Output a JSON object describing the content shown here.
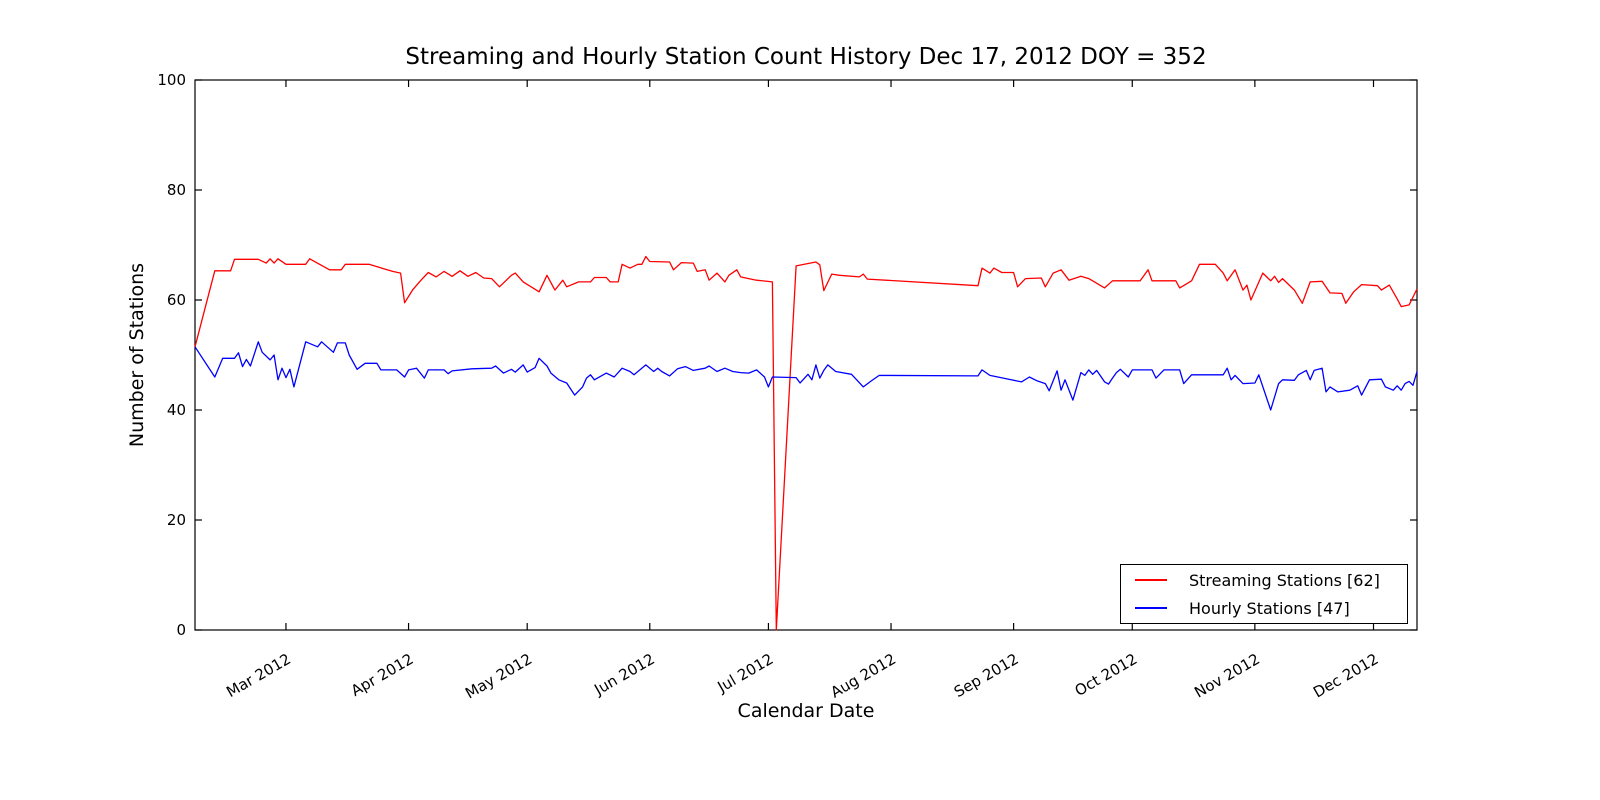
{
  "chart_data": {
    "type": "line",
    "title": "Streaming and Hourly Station Count History Dec 17, 2012 DOY = 352",
    "xlabel": "Calendar Date",
    "ylabel": "Number of Stations",
    "ylim": [
      0,
      100
    ],
    "yticks": [
      0,
      20,
      40,
      60,
      80,
      100
    ],
    "grid": false,
    "legend_position": "lower right",
    "x_axis": {
      "description": "days since start of plotted range (early Feb 2012)",
      "range": [
        0,
        309
      ],
      "month_ticks": [
        {
          "label": "Mar 2012",
          "day": 23
        },
        {
          "label": "Apr 2012",
          "day": 54
        },
        {
          "label": "May 2012",
          "day": 84
        },
        {
          "label": "Jun 2012",
          "day": 115
        },
        {
          "label": "Jul 2012",
          "day": 145
        },
        {
          "label": "Aug 2012",
          "day": 176
        },
        {
          "label": "Sep 2012",
          "day": 207
        },
        {
          "label": "Oct 2012",
          "day": 237
        },
        {
          "label": "Nov 2012",
          "day": 268
        },
        {
          "label": "Dec 2012",
          "day": 298
        }
      ]
    },
    "series": [
      {
        "name": "Streaming Stations [62]",
        "color": "#ff0000",
        "current_value": 62,
        "points": [
          [
            0,
            51.5
          ],
          [
            5,
            65.3
          ],
          [
            9,
            65.3
          ],
          [
            10,
            67.4
          ],
          [
            16,
            67.4
          ],
          [
            18,
            66.7
          ],
          [
            19,
            67.5
          ],
          [
            20,
            66.7
          ],
          [
            21,
            67.5
          ],
          [
            23,
            66.5
          ],
          [
            28,
            66.5
          ],
          [
            29,
            67.5
          ],
          [
            34,
            65.5
          ],
          [
            37,
            65.5
          ],
          [
            38,
            66.5
          ],
          [
            44,
            66.5
          ],
          [
            50,
            65.2
          ],
          [
            52,
            64.9
          ],
          [
            53,
            59.5
          ],
          [
            55,
            61.8
          ],
          [
            57,
            63.5
          ],
          [
            59,
            65.0
          ],
          [
            61,
            64.2
          ],
          [
            63,
            65.2
          ],
          [
            65,
            64.3
          ],
          [
            67,
            65.3
          ],
          [
            69,
            64.3
          ],
          [
            71,
            65.0
          ],
          [
            73,
            64.0
          ],
          [
            75,
            63.9
          ],
          [
            77,
            62.4
          ],
          [
            80,
            64.5
          ],
          [
            81,
            64.9
          ],
          [
            83,
            63.3
          ],
          [
            85,
            62.4
          ],
          [
            87,
            61.5
          ],
          [
            89,
            64.5
          ],
          [
            91,
            61.8
          ],
          [
            93,
            63.6
          ],
          [
            94,
            62.4
          ],
          [
            97,
            63.3
          ],
          [
            100,
            63.3
          ],
          [
            101,
            64.1
          ],
          [
            104,
            64.1
          ],
          [
            105,
            63.3
          ],
          [
            107,
            63.3
          ],
          [
            108,
            66.5
          ],
          [
            110,
            65.8
          ],
          [
            112,
            66.5
          ],
          [
            113,
            66.5
          ],
          [
            114,
            67.9
          ],
          [
            115,
            67.0
          ],
          [
            120,
            66.9
          ],
          [
            121,
            65.5
          ],
          [
            123,
            66.8
          ],
          [
            126,
            66.7
          ],
          [
            127,
            65.2
          ],
          [
            129,
            65.5
          ],
          [
            130,
            63.6
          ],
          [
            132,
            64.9
          ],
          [
            134,
            63.3
          ],
          [
            135,
            64.5
          ],
          [
            137,
            65.5
          ],
          [
            138,
            64.2
          ],
          [
            140,
            63.9
          ],
          [
            142,
            63.6
          ],
          [
            146,
            63.3
          ],
          [
            147,
            0
          ],
          [
            152,
            66.2
          ],
          [
            157,
            66.9
          ],
          [
            158,
            66.4
          ],
          [
            159,
            61.7
          ],
          [
            161,
            64.7
          ],
          [
            163,
            64.5
          ],
          [
            168,
            64.2
          ],
          [
            169,
            64.7
          ],
          [
            170,
            63.8
          ],
          [
            198,
            62.6
          ],
          [
            199,
            65.8
          ],
          [
            201,
            64.9
          ],
          [
            202,
            65.8
          ],
          [
            204,
            65.0
          ],
          [
            207,
            65.0
          ],
          [
            208,
            62.4
          ],
          [
            210,
            63.9
          ],
          [
            214,
            64.0
          ],
          [
            215,
            62.4
          ],
          [
            217,
            64.9
          ],
          [
            219,
            65.5
          ],
          [
            221,
            63.6
          ],
          [
            224,
            64.3
          ],
          [
            226,
            63.9
          ],
          [
            230,
            62.2
          ],
          [
            232,
            63.5
          ],
          [
            239,
            63.5
          ],
          [
            241,
            65.5
          ],
          [
            242,
            63.5
          ],
          [
            248,
            63.5
          ],
          [
            249,
            62.2
          ],
          [
            252,
            63.5
          ],
          [
            254,
            66.5
          ],
          [
            258,
            66.5
          ],
          [
            260,
            64.9
          ],
          [
            261,
            63.5
          ],
          [
            263,
            65.5
          ],
          [
            265,
            61.8
          ],
          [
            266,
            62.7
          ],
          [
            267,
            60.0
          ],
          [
            270,
            64.9
          ],
          [
            272,
            63.5
          ],
          [
            273,
            64.3
          ],
          [
            274,
            63.2
          ],
          [
            275,
            63.9
          ],
          [
            278,
            61.8
          ],
          [
            280,
            59.4
          ],
          [
            282,
            63.3
          ],
          [
            285,
            63.4
          ],
          [
            287,
            61.3
          ],
          [
            290,
            61.2
          ],
          [
            291,
            59.4
          ],
          [
            293,
            61.5
          ],
          [
            295,
            62.8
          ],
          [
            299,
            62.6
          ],
          [
            300,
            61.8
          ],
          [
            302,
            62.7
          ],
          [
            304,
            60.2
          ],
          [
            305,
            58.8
          ],
          [
            307,
            59.1
          ],
          [
            309,
            62.0
          ]
        ]
      },
      {
        "name": "Hourly Stations [47]",
        "color": "#0000ff",
        "current_value": 47,
        "points": [
          [
            0,
            51.5
          ],
          [
            5,
            46.0
          ],
          [
            7,
            49.4
          ],
          [
            10,
            49.4
          ],
          [
            11,
            50.4
          ],
          [
            12,
            47.9
          ],
          [
            13,
            49.2
          ],
          [
            14,
            48.0
          ],
          [
            16,
            52.4
          ],
          [
            17,
            50.5
          ],
          [
            19,
            49.1
          ],
          [
            20,
            50.0
          ],
          [
            21,
            45.5
          ],
          [
            22,
            47.6
          ],
          [
            23,
            45.9
          ],
          [
            24,
            47.4
          ],
          [
            25,
            44.2
          ],
          [
            28,
            52.4
          ],
          [
            31,
            51.5
          ],
          [
            32,
            52.4
          ],
          [
            35,
            50.5
          ],
          [
            36,
            52.2
          ],
          [
            38,
            52.2
          ],
          [
            39,
            50.0
          ],
          [
            41,
            47.4
          ],
          [
            43,
            48.5
          ],
          [
            46,
            48.5
          ],
          [
            47,
            47.3
          ],
          [
            51,
            47.3
          ],
          [
            53,
            46.0
          ],
          [
            54,
            47.3
          ],
          [
            56,
            47.6
          ],
          [
            58,
            45.8
          ],
          [
            59,
            47.3
          ],
          [
            63,
            47.3
          ],
          [
            64,
            46.6
          ],
          [
            65,
            47.1
          ],
          [
            70,
            47.5
          ],
          [
            75,
            47.6
          ],
          [
            76,
            48.0
          ],
          [
            78,
            46.7
          ],
          [
            80,
            47.4
          ],
          [
            81,
            46.9
          ],
          [
            83,
            48.2
          ],
          [
            84,
            46.9
          ],
          [
            86,
            47.7
          ],
          [
            87,
            49.4
          ],
          [
            89,
            48.0
          ],
          [
            90,
            46.7
          ],
          [
            92,
            45.5
          ],
          [
            94,
            44.9
          ],
          [
            96,
            42.7
          ],
          [
            98,
            44.2
          ],
          [
            99,
            45.8
          ],
          [
            100,
            46.4
          ],
          [
            101,
            45.5
          ],
          [
            104,
            46.7
          ],
          [
            106,
            46.0
          ],
          [
            108,
            47.6
          ],
          [
            110,
            47.0
          ],
          [
            111,
            46.4
          ],
          [
            114,
            48.2
          ],
          [
            116,
            47.0
          ],
          [
            117,
            47.6
          ],
          [
            118,
            47.0
          ],
          [
            120,
            46.2
          ],
          [
            122,
            47.5
          ],
          [
            124,
            47.9
          ],
          [
            126,
            47.2
          ],
          [
            129,
            47.6
          ],
          [
            130,
            48.0
          ],
          [
            132,
            47.0
          ],
          [
            134,
            47.6
          ],
          [
            136,
            47.0
          ],
          [
            138,
            46.8
          ],
          [
            140,
            46.7
          ],
          [
            142,
            47.3
          ],
          [
            144,
            46.0
          ],
          [
            145,
            44.2
          ],
          [
            146,
            46.0
          ],
          [
            152,
            45.9
          ],
          [
            153,
            44.9
          ],
          [
            155,
            46.5
          ],
          [
            156,
            45.5
          ],
          [
            157,
            48.2
          ],
          [
            158,
            45.8
          ],
          [
            159,
            47.2
          ],
          [
            160,
            48.2
          ],
          [
            162,
            47.0
          ],
          [
            166,
            46.5
          ],
          [
            169,
            44.2
          ],
          [
            171,
            45.3
          ],
          [
            173,
            46.3
          ],
          [
            198,
            46.2
          ],
          [
            199,
            47.3
          ],
          [
            201,
            46.3
          ],
          [
            205,
            45.7
          ],
          [
            209,
            45.1
          ],
          [
            211,
            46.0
          ],
          [
            213,
            45.3
          ],
          [
            215,
            44.8
          ],
          [
            216,
            43.5
          ],
          [
            218,
            47.1
          ],
          [
            219,
            43.6
          ],
          [
            220,
            45.5
          ],
          [
            222,
            41.8
          ],
          [
            224,
            46.8
          ],
          [
            225,
            46.3
          ],
          [
            226,
            47.3
          ],
          [
            227,
            46.5
          ],
          [
            228,
            47.2
          ],
          [
            230,
            45.1
          ],
          [
            231,
            44.7
          ],
          [
            232,
            45.8
          ],
          [
            233,
            46.8
          ],
          [
            234,
            47.4
          ],
          [
            236,
            46.0
          ],
          [
            237,
            47.3
          ],
          [
            242,
            47.3
          ],
          [
            243,
            45.8
          ],
          [
            245,
            47.3
          ],
          [
            249,
            47.3
          ],
          [
            250,
            44.8
          ],
          [
            252,
            46.4
          ],
          [
            260,
            46.4
          ],
          [
            261,
            47.6
          ],
          [
            262,
            45.5
          ],
          [
            263,
            46.3
          ],
          [
            265,
            44.8
          ],
          [
            268,
            44.9
          ],
          [
            269,
            46.4
          ],
          [
            272,
            40.0
          ],
          [
            274,
            44.8
          ],
          [
            275,
            45.5
          ],
          [
            278,
            45.4
          ],
          [
            279,
            46.4
          ],
          [
            281,
            47.2
          ],
          [
            282,
            45.5
          ],
          [
            283,
            47.2
          ],
          [
            285,
            47.6
          ],
          [
            286,
            43.3
          ],
          [
            287,
            44.2
          ],
          [
            289,
            43.3
          ],
          [
            292,
            43.6
          ],
          [
            294,
            44.4
          ],
          [
            295,
            42.7
          ],
          [
            297,
            45.5
          ],
          [
            300,
            45.6
          ],
          [
            301,
            44.2
          ],
          [
            303,
            43.6
          ],
          [
            304,
            44.4
          ],
          [
            305,
            43.6
          ],
          [
            306,
            44.8
          ],
          [
            307,
            45.2
          ],
          [
            308,
            44.5
          ],
          [
            309,
            47.0
          ]
        ]
      }
    ]
  }
}
